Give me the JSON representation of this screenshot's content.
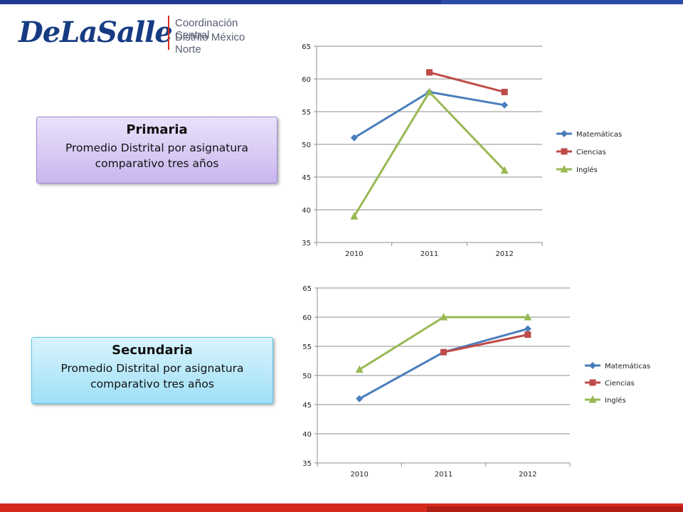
{
  "logo": {
    "wordmark": "DeLaSalle",
    "line1": "Coordinación Central",
    "line2": "Distrito México Norte"
  },
  "callouts": {
    "primaria": {
      "title": "Primaria",
      "desc": "Promedio Distrital por asignatura comparativo tres años"
    },
    "secundaria": {
      "title": "Secundaria",
      "desc": "Promedio Distrital por asignatura comparativo tres años"
    }
  },
  "chart_data": [
    {
      "type": "line",
      "categories": [
        "2010",
        "2011",
        "2012"
      ],
      "ylim": [
        35,
        65
      ],
      "yticks": [
        "35",
        "40",
        "45",
        "50",
        "55",
        "60",
        "65"
      ],
      "grid": true,
      "legend": "right",
      "series": [
        {
          "name": "Matemáticas",
          "color": "#4a7ebb",
          "marker": "diamond",
          "values": [
            51,
            58,
            56
          ]
        },
        {
          "name": "Ciencias",
          "color": "#be4b48",
          "marker": "square",
          "values": [
            null,
            61,
            58
          ]
        },
        {
          "name": "Inglés",
          "color": "#98b954",
          "marker": "triangle",
          "values": [
            39,
            58,
            46
          ]
        }
      ]
    },
    {
      "type": "line",
      "categories": [
        "2010",
        "2011",
        "2012"
      ],
      "ylim": [
        35,
        65
      ],
      "yticks": [
        "35",
        "40",
        "45",
        "50",
        "55",
        "60",
        "65"
      ],
      "grid": true,
      "legend": "right",
      "series": [
        {
          "name": "Matemáticas",
          "color": "#4a7ebb",
          "marker": "diamond",
          "values": [
            46,
            54,
            58
          ]
        },
        {
          "name": "Ciencias",
          "color": "#be4b48",
          "marker": "square",
          "values": [
            null,
            54,
            57
          ]
        },
        {
          "name": "Inglés",
          "color": "#98b954",
          "marker": "triangle",
          "values": [
            51,
            60,
            60
          ]
        }
      ]
    }
  ]
}
